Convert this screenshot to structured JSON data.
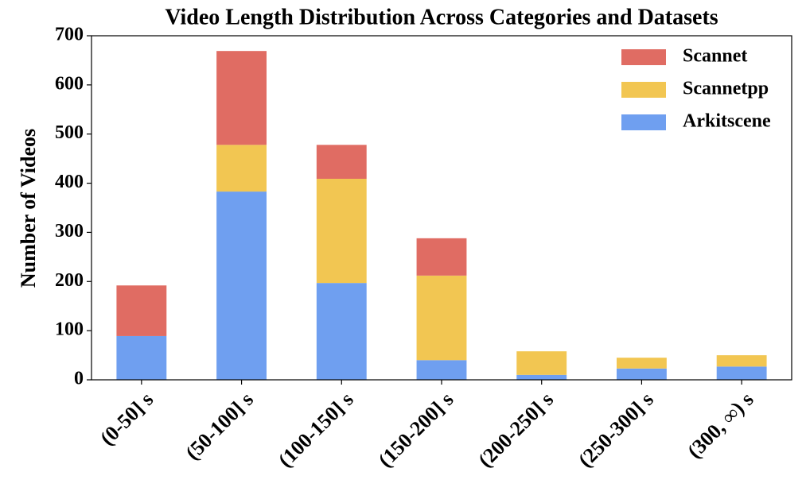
{
  "chart_data": {
    "type": "stacked_bar",
    "title": "Video Length Distribution Across Categories and Datasets",
    "y_label": "Number of Videos",
    "categories": [
      "(0-50] s",
      "(50-100] s",
      "(100-150] s",
      "(150-200] s",
      "(200-250] s",
      "(250-300] s",
      "(300, ∞) s"
    ],
    "series": [
      {
        "name": "Arkitscene",
        "color": "#6f9ff0",
        "values": [
          89,
          383,
          197,
          40,
          10,
          23,
          27
        ]
      },
      {
        "name": "Scannetpp",
        "color": "#f2c652",
        "values": [
          0,
          95,
          212,
          172,
          48,
          22,
          23
        ]
      },
      {
        "name": "Scannet",
        "color": "#e06c63",
        "values": [
          103,
          191,
          69,
          76,
          0,
          0,
          0
        ]
      }
    ],
    "ylim": [
      0,
      700
    ],
    "yticks": [
      0,
      100,
      200,
      300,
      400,
      500,
      600,
      700
    ],
    "legend": "upper right"
  }
}
